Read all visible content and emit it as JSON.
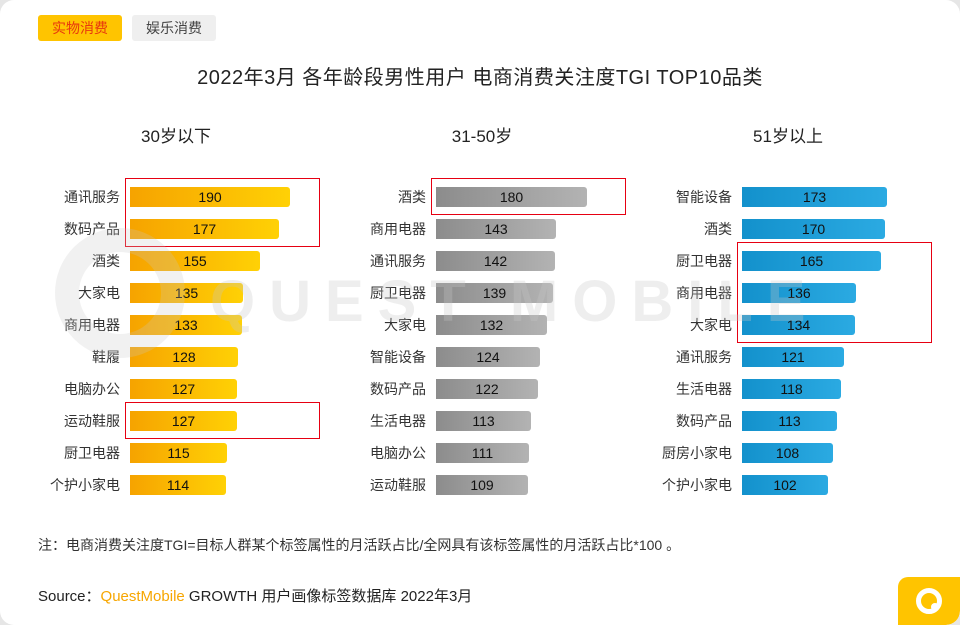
{
  "tabs": [
    {
      "name": "tab-physical-consumption",
      "label": "实物消费",
      "active": true
    },
    {
      "name": "tab-entertainment-consumption",
      "label": "娱乐消费",
      "active": false
    }
  ],
  "title": "2022年3月 各年龄段男性用户 电商消费关注度TGI TOP10品类",
  "note": "注：电商消费关注度TGI=目标人群某个标签属性的月活跃占比/全网具有该标签属性的月活跃占比*100 。",
  "source": {
    "prefix": "Source：",
    "brand": "QuestMobile",
    "suffix": " GROWTH 用户画像标签数据库 2022年3月"
  },
  "watermark": "QUEST MOBILE",
  "colors": {
    "accent_yellow": "#FFC400",
    "active_tab_text": "#E8380D",
    "highlight_red": "#E60012",
    "brand_orange": "#F7A600"
  },
  "chart_data": [
    {
      "type": "bar",
      "orientation": "horizontal",
      "title": "30岁以下",
      "categories": [
        "通讯服务",
        "数码产品",
        "酒类",
        "大家电",
        "商用电器",
        "鞋履",
        "电脑办公",
        "运动鞋服",
        "厨卫电器",
        "个护小家电"
      ],
      "values": [
        190,
        177,
        155,
        135,
        133,
        128,
        127,
        127,
        115,
        114
      ],
      "xlim": [
        0,
        200
      ],
      "value_labels": true,
      "bar_color_start": "#F6A300",
      "bar_color_end": "#FFD105",
      "highlight_color": "#E60012",
      "highlight_boxes": [
        {
          "from_row": 0,
          "to_row": 1
        },
        {
          "from_row": 7,
          "to_row": 7
        }
      ]
    },
    {
      "type": "bar",
      "orientation": "horizontal",
      "title": "31-50岁",
      "categories": [
        "酒类",
        "商用电器",
        "通讯服务",
        "厨卫电器",
        "大家电",
        "智能设备",
        "数码产品",
        "生活电器",
        "电脑办公",
        "运动鞋服"
      ],
      "values": [
        180,
        143,
        142,
        139,
        132,
        124,
        122,
        113,
        111,
        109
      ],
      "xlim": [
        0,
        200
      ],
      "value_labels": true,
      "bar_color_start": "#8C8C8C",
      "bar_color_end": "#B3B3B3",
      "highlight_color": "#E60012",
      "highlight_boxes": [
        {
          "from_row": 0,
          "to_row": 0
        }
      ]
    },
    {
      "type": "bar",
      "orientation": "horizontal",
      "title": "51岁以上",
      "categories": [
        "智能设备",
        "酒类",
        "厨卫电器",
        "商用电器",
        "大家电",
        "通讯服务",
        "生活电器",
        "数码产品",
        "厨房小家电",
        "个护小家电"
      ],
      "values": [
        173,
        170,
        165,
        136,
        134,
        121,
        118,
        113,
        108,
        102
      ],
      "xlim": [
        0,
        200
      ],
      "value_labels": true,
      "bar_color_start": "#1391CC",
      "bar_color_end": "#2BAAE2",
      "highlight_color": "#E60012",
      "highlight_boxes": [
        {
          "from_row": 2,
          "to_row": 4
        }
      ]
    }
  ]
}
